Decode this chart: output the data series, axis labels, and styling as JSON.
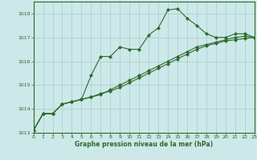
{
  "series": [
    {
      "x": [
        0,
        1,
        2,
        3,
        4,
        5,
        6,
        7,
        8,
        9,
        10,
        11,
        12,
        13,
        14,
        15,
        16,
        17,
        18,
        19,
        20,
        21,
        22,
        23
      ],
      "y": [
        1013.1,
        1013.8,
        1013.8,
        1014.2,
        1014.3,
        1014.4,
        1015.4,
        1016.2,
        1016.2,
        1016.6,
        1016.5,
        1016.5,
        1017.1,
        1017.4,
        1018.15,
        1018.2,
        1017.8,
        1017.5,
        1017.15,
        1017.0,
        1017.0,
        1017.15,
        1017.15,
        1017.0
      ]
    },
    {
      "x": [
        0,
        1,
        2,
        3,
        4,
        5,
        6,
        7,
        8,
        9,
        10,
        11,
        12,
        13,
        14,
        15,
        16,
        17,
        18,
        19,
        20,
        21,
        22,
        23
      ],
      "y": [
        1013.1,
        1013.8,
        1013.8,
        1014.2,
        1014.3,
        1014.4,
        1014.5,
        1014.6,
        1014.8,
        1015.0,
        1015.2,
        1015.4,
        1015.6,
        1015.8,
        1016.0,
        1016.2,
        1016.4,
        1016.6,
        1016.7,
        1016.8,
        1016.9,
        1017.0,
        1017.05,
        1017.0
      ]
    },
    {
      "x": [
        0,
        1,
        2,
        3,
        4,
        5,
        6,
        7,
        8,
        9,
        10,
        11,
        12,
        13,
        14,
        15,
        16,
        17,
        18,
        19,
        20,
        21,
        22,
        23
      ],
      "y": [
        1013.1,
        1013.8,
        1013.8,
        1014.2,
        1014.3,
        1014.4,
        1014.5,
        1014.65,
        1014.75,
        1014.9,
        1015.1,
        1015.3,
        1015.5,
        1015.7,
        1015.9,
        1016.1,
        1016.3,
        1016.5,
        1016.65,
        1016.75,
        1016.85,
        1016.9,
        1016.95,
        1017.0
      ]
    }
  ],
  "line_color": "#2d6a2d",
  "marker": "D",
  "marker_size": 2.2,
  "xlim": [
    0,
    23
  ],
  "ylim": [
    1013.0,
    1018.5
  ],
  "yticks": [
    1013,
    1014,
    1015,
    1016,
    1017,
    1018
  ],
  "xticks": [
    0,
    1,
    2,
    3,
    4,
    5,
    6,
    7,
    8,
    9,
    10,
    11,
    12,
    13,
    14,
    15,
    16,
    17,
    18,
    19,
    20,
    21,
    22,
    23
  ],
  "xlabel": "Graphe pression niveau de la mer (hPa)",
  "bg_color": "#cce8e8",
  "grid_color": "#aacccc",
  "tick_color": "#2d6a2d",
  "label_color": "#2d6a2d"
}
